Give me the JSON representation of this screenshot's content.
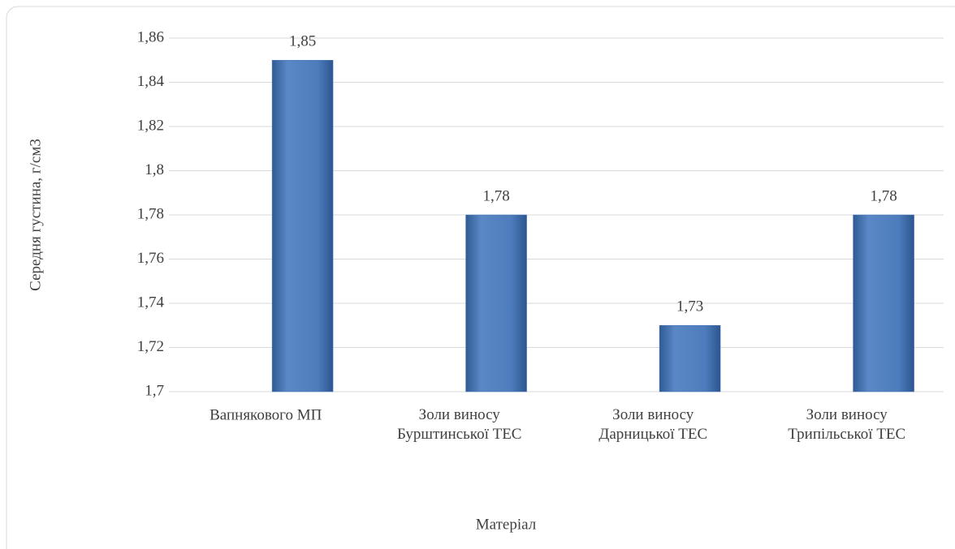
{
  "chart_data": {
    "type": "bar",
    "x_label": "Матеріал",
    "y_label": "Середня  густина, г/см3",
    "categories": [
      "Вапнякового МП",
      "Золи виносу\nБурштинської ТЕС",
      "Золи виносу\nДарницької ТЕС",
      "Золи виносу\nТрипільської ТЕС"
    ],
    "values": [
      1.85,
      1.78,
      1.73,
      1.78
    ],
    "value_labels": [
      "1,85",
      "1,78",
      "1,73",
      "1,78"
    ],
    "color": "#4a78b5",
    "ylim": [
      1.7,
      1.86
    ],
    "yticks": [
      {
        "value": 1.7,
        "label": "1,7"
      },
      {
        "value": 1.72,
        "label": "1,72"
      },
      {
        "value": 1.74,
        "label": "1,74"
      },
      {
        "value": 1.76,
        "label": "1,76"
      },
      {
        "value": 1.78,
        "label": "1,78"
      },
      {
        "value": 1.8,
        "label": "1,8"
      },
      {
        "value": 1.82,
        "label": "1,82"
      },
      {
        "value": 1.84,
        "label": "1,84"
      },
      {
        "value": 1.86,
        "label": "1,86"
      }
    ],
    "grid": true
  }
}
